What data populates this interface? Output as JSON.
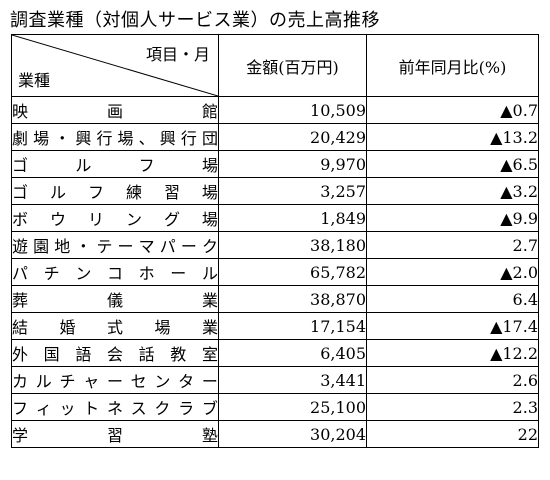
{
  "title": "調査業種（対個人サービス業）の売上高推移",
  "header": {
    "corner_top": "項目・月",
    "corner_bottom": "業種",
    "amount": "金額(百万円)",
    "ratio": "前年同月比(%)"
  },
  "rows": [
    {
      "category": "映画館",
      "amount": "10,509",
      "ratio": "▲0.7"
    },
    {
      "category": "劇場・興行場、興行団",
      "amount": "20,429",
      "ratio": "▲13.2"
    },
    {
      "category": "ゴルフ場",
      "amount": "9,970",
      "ratio": "▲6.5"
    },
    {
      "category": "ゴルフ練習場",
      "amount": "3,257",
      "ratio": "▲3.2"
    },
    {
      "category": "ボウリング場",
      "amount": "1,849",
      "ratio": "▲9.9"
    },
    {
      "category": "遊園地・テーマパーク",
      "amount": "38,180",
      "ratio": "2.7"
    },
    {
      "category": "パチンコホール",
      "amount": "65,782",
      "ratio": "▲2.0"
    },
    {
      "category": "葬儀業",
      "amount": "38,870",
      "ratio": "6.4"
    },
    {
      "category": "結婚式場業",
      "amount": "17,154",
      "ratio": "▲17.4"
    },
    {
      "category": "外国語会話教室",
      "amount": "6,405",
      "ratio": "▲12.2"
    },
    {
      "category": "カルチャーセンター",
      "amount": "3,441",
      "ratio": "2.6"
    },
    {
      "category": "フィットネスクラブ",
      "amount": "25,100",
      "ratio": "2.3"
    },
    {
      "category": "学習塾",
      "amount": "30,204",
      "ratio": "22"
    }
  ]
}
